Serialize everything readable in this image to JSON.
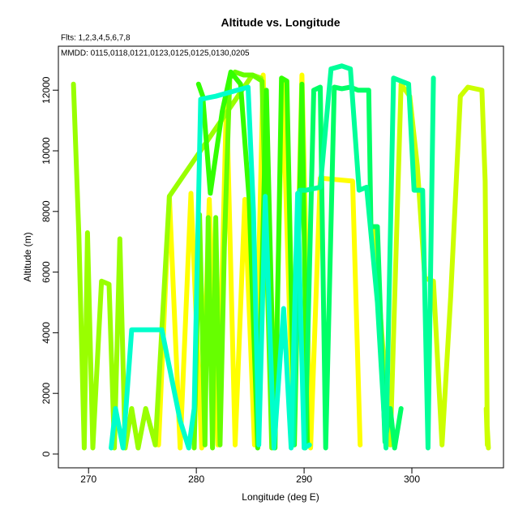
{
  "chart_data": {
    "type": "line",
    "title": "Altitude vs. Longitude",
    "annotations": [
      "Flts: 1,2,3,4,5,6,7,8",
      "MMDD: 0115,0118,0121,0123,0125,0125,0130,0205"
    ],
    "x_label": "Longitude (deg E)",
    "y_label": "Altitude (m)",
    "xlim": [
      267.2,
      308.5
    ],
    "ylim": [
      -455,
      13450
    ],
    "xticks": [
      270,
      280,
      290,
      300
    ],
    "yticks": [
      0,
      2000,
      4000,
      6000,
      8000,
      10000,
      12000
    ],
    "grid": false,
    "series": [
      {
        "color": "#ffff00",
        "x": [
          276.5,
          277.5,
          278.5,
          279.5,
          280.5,
          281.2,
          282,
          282.8,
          283.6,
          284.5,
          285.4,
          286.2,
          287.2,
          288,
          289,
          289.8,
          290.6,
          291.5,
          294.5,
          295.2
        ],
        "values": [
          300,
          8500,
          200,
          8600,
          200,
          8400,
          300,
          11800,
          300,
          8400,
          300,
          12500,
          300,
          12300,
          400,
          12500,
          200,
          9100,
          9000,
          300
        ]
      },
      {
        "color": "#ccff00",
        "x": [
          296.5,
          297.2,
          298,
          299,
          299.8,
          300.5,
          301.2,
          302,
          302.8,
          303.6,
          304.5,
          305.2,
          306.5,
          306.8,
          307,
          306.9,
          307.1
        ],
        "values": [
          7500,
          4000,
          300,
          12200,
          11800,
          9500,
          5800,
          5700,
          300,
          5200,
          11800,
          12100,
          12000,
          9000,
          300,
          1500,
          200
        ]
      },
      {
        "color": "#99ff00",
        "x": [
          268.6,
          269.1,
          269.6,
          269.9,
          270.4,
          271.2,
          271.9,
          272.4,
          272.9,
          273.4,
          274,
          274.6,
          275.3,
          276.2,
          277.5,
          285.2,
          286
        ],
        "values": [
          12200,
          7200,
          200,
          7300,
          200,
          5700,
          5600,
          200,
          7100,
          200,
          1500,
          200,
          1500,
          300,
          8500,
          12500,
          12400
        ]
      },
      {
        "color": "#66ff00",
        "x": [
          279.8,
          280.3,
          280.8,
          281.1,
          281.5,
          281.8,
          282.2,
          282.6,
          283.1,
          283.6,
          284.4,
          285.2,
          286.1,
          287
        ],
        "values": [
          200,
          7900,
          300,
          7800,
          200,
          7800,
          300,
          6800,
          12400,
          12600,
          12500,
          12500,
          12300,
          200
        ]
      },
      {
        "color": "#33ff00",
        "x": [
          280.2,
          280.6,
          281.3,
          282.4,
          283.2,
          284.1,
          284.9,
          285.7,
          286.5,
          287.3,
          287.9,
          288.4,
          289.1,
          289.8,
          290.3
        ],
        "values": [
          12200,
          11800,
          8600,
          11300,
          12600,
          12200,
          8400,
          200,
          12000,
          200,
          12400,
          12300,
          300,
          12200,
          300
        ]
      },
      {
        "color": "#00ff66",
        "x": [
          290.1,
          290.9,
          291.5,
          292,
          292.8,
          293.5,
          294.3,
          295,
          296,
          296.2,
          296.8,
          297.5,
          298,
          298.4,
          299
        ],
        "values": [
          200,
          12000,
          12100,
          200,
          12100,
          12050,
          12100,
          12000,
          12000,
          7500,
          7500,
          400,
          1500,
          200,
          1500
        ]
      },
      {
        "color": "#00ff99",
        "x": [
          289,
          289.6,
          290.2,
          291.5,
          292.5,
          293.5,
          294.3,
          295.1,
          295.8,
          296.8,
          297.6,
          298.3,
          299,
          299.7,
          300.2,
          301,
          301.5,
          302
        ],
        "values": [
          300,
          8700,
          8700,
          8800,
          12700,
          12800,
          12700,
          8700,
          8800,
          5000,
          200,
          12400,
          12300,
          12200,
          8700,
          8700,
          200,
          12400
        ]
      },
      {
        "color": "#00ffcc",
        "x": [
          272.1,
          272.5,
          273.2,
          274,
          275.4,
          276.8,
          278.5,
          279.3,
          279.8,
          280.4,
          281.8,
          284.8,
          285.3,
          285.8,
          286.4,
          287.2,
          288.1,
          288.8,
          289.4,
          290,
          290.5
        ],
        "values": [
          200,
          1500,
          200,
          4100,
          4100,
          4100,
          1100,
          200,
          1500,
          11700,
          11800,
          12100,
          8000,
          300,
          8500,
          200,
          4800,
          200,
          8600,
          200,
          300
        ]
      }
    ]
  }
}
